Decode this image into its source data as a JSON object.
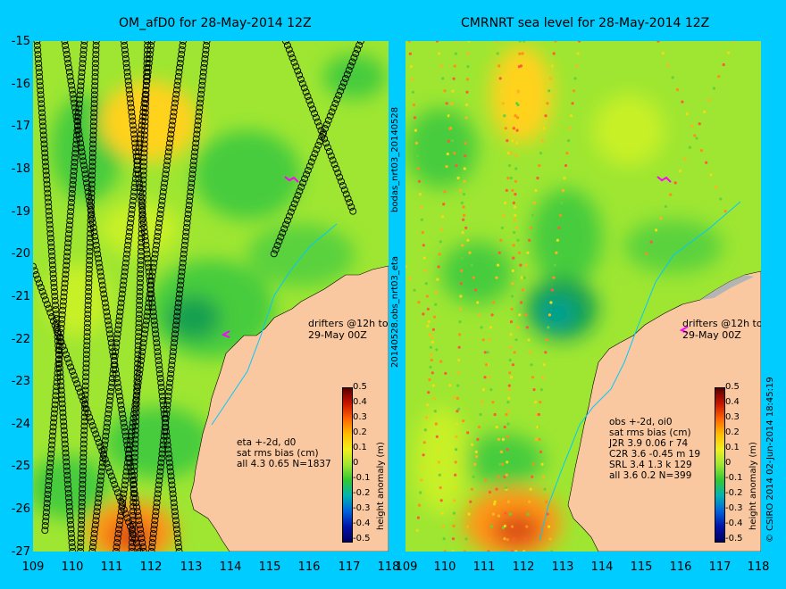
{
  "left_title": "OM_afD0 for 28-May-2014 12Z",
  "right_title": "CMRNRT sea level  for 28-May-2014 12Z",
  "y_ticks": [
    "-15",
    "-16",
    "-17",
    "-18",
    "-19",
    "-20",
    "-21",
    "-22",
    "-23",
    "-24",
    "-25",
    "-26",
    "-27"
  ],
  "x_ticks": [
    "109",
    "110",
    "111",
    "112",
    "113",
    "114",
    "115",
    "116",
    "117",
    "118"
  ],
  "colorbar": {
    "label": "height anomaly (m)",
    "ticks": [
      "0.5",
      "0.4",
      "0.3",
      "0.2",
      "0.1",
      "0",
      "-0.1",
      "-0.2",
      "-0.3",
      "-0.4",
      "-0.5"
    ]
  },
  "left_stats": {
    "line1": "eta +-2d, d0",
    "line2": "sat rms bias (cm)",
    "line3": "all 4.3 0.65 N=1837"
  },
  "right_stats": {
    "line1": "obs +-2d, oi0",
    "line2": "sat rms bias (cm)",
    "line3": "J2R   3.9 0.06 r 74",
    "line4": "C2R   3.6 -0.45 m 19",
    "line5": "SRL   3.4 1.3 k 129",
    "line6": "all   3.6 0.2 N=399"
  },
  "drifters_text_1": "drifters @12h to",
  "drifters_text_2": "29-May 00Z",
  "side_text_upper": "bodas_nrt03_20140528",
  "side_text_lower": "20140528.obs_nrt03_eta",
  "right_edge_text": "© CSIRO 2014   02-Jun-2014 18:45:19",
  "colors": {
    "background": "#00ccff",
    "land": "#fac8a0",
    "ocean_base": "#9ee632"
  },
  "map_data": {
    "lon_range": [
      109,
      118
    ],
    "lat_range": [
      -27,
      -15
    ],
    "left_tracks_lonlat": [
      [
        [
          109.1,
          -15
        ],
        [
          110.0,
          -27
        ]
      ],
      [
        [
          109.8,
          -15
        ],
        [
          111.8,
          -27
        ]
      ],
      [
        [
          110.6,
          -15
        ],
        [
          110.2,
          -27
        ]
      ],
      [
        [
          111.3,
          -15
        ],
        [
          112.7,
          -27
        ]
      ],
      [
        [
          112.0,
          -15
        ],
        [
          110.5,
          -27
        ]
      ],
      [
        [
          112.8,
          -15
        ],
        [
          111.1,
          -27
        ]
      ],
      [
        [
          113.4,
          -15
        ],
        [
          112.0,
          -27
        ]
      ],
      [
        [
          109.0,
          -20.3
        ],
        [
          111.7,
          -27
        ]
      ],
      [
        [
          110.3,
          -15
        ],
        [
          109.3,
          -26.5
        ]
      ],
      [
        [
          111.9,
          -15
        ],
        [
          111.5,
          -27
        ]
      ],
      [
        [
          115.1,
          -20.0
        ],
        [
          117.3,
          -15.0
        ]
      ],
      [
        [
          115.4,
          -15.0
        ],
        [
          117.1,
          -19.0
        ]
      ]
    ]
  }
}
